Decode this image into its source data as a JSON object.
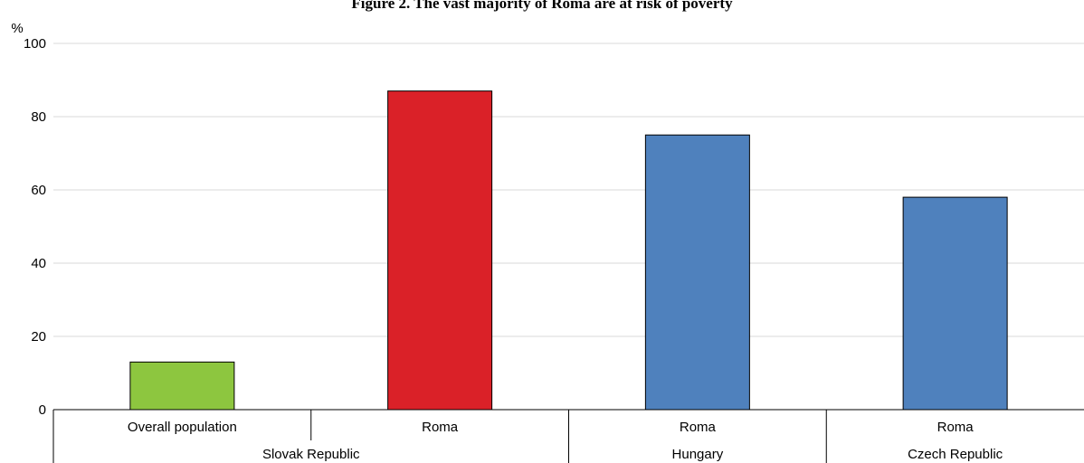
{
  "chart_data": {
    "type": "bar",
    "title": "Figure 2. The vast majority of Roma are at risk of poverty",
    "ylabel": "%",
    "ylim": [
      0,
      100
    ],
    "yticks": [
      "0",
      "20",
      "40",
      "60",
      "80",
      "100"
    ],
    "grid": true,
    "categories": [
      "Overall population",
      "Roma",
      "Roma",
      "Roma"
    ],
    "groups": [
      "Slovak Republic",
      "Slovak Republic",
      "Hungary",
      "Czech Republic"
    ],
    "group_labels": [
      "Slovak Republic",
      "Hungary",
      "Czech Republic"
    ],
    "values": [
      13,
      87,
      75,
      58
    ],
    "colors": [
      "#8dc63f",
      "#da2128",
      "#4f81bd",
      "#4f81bd"
    ]
  }
}
